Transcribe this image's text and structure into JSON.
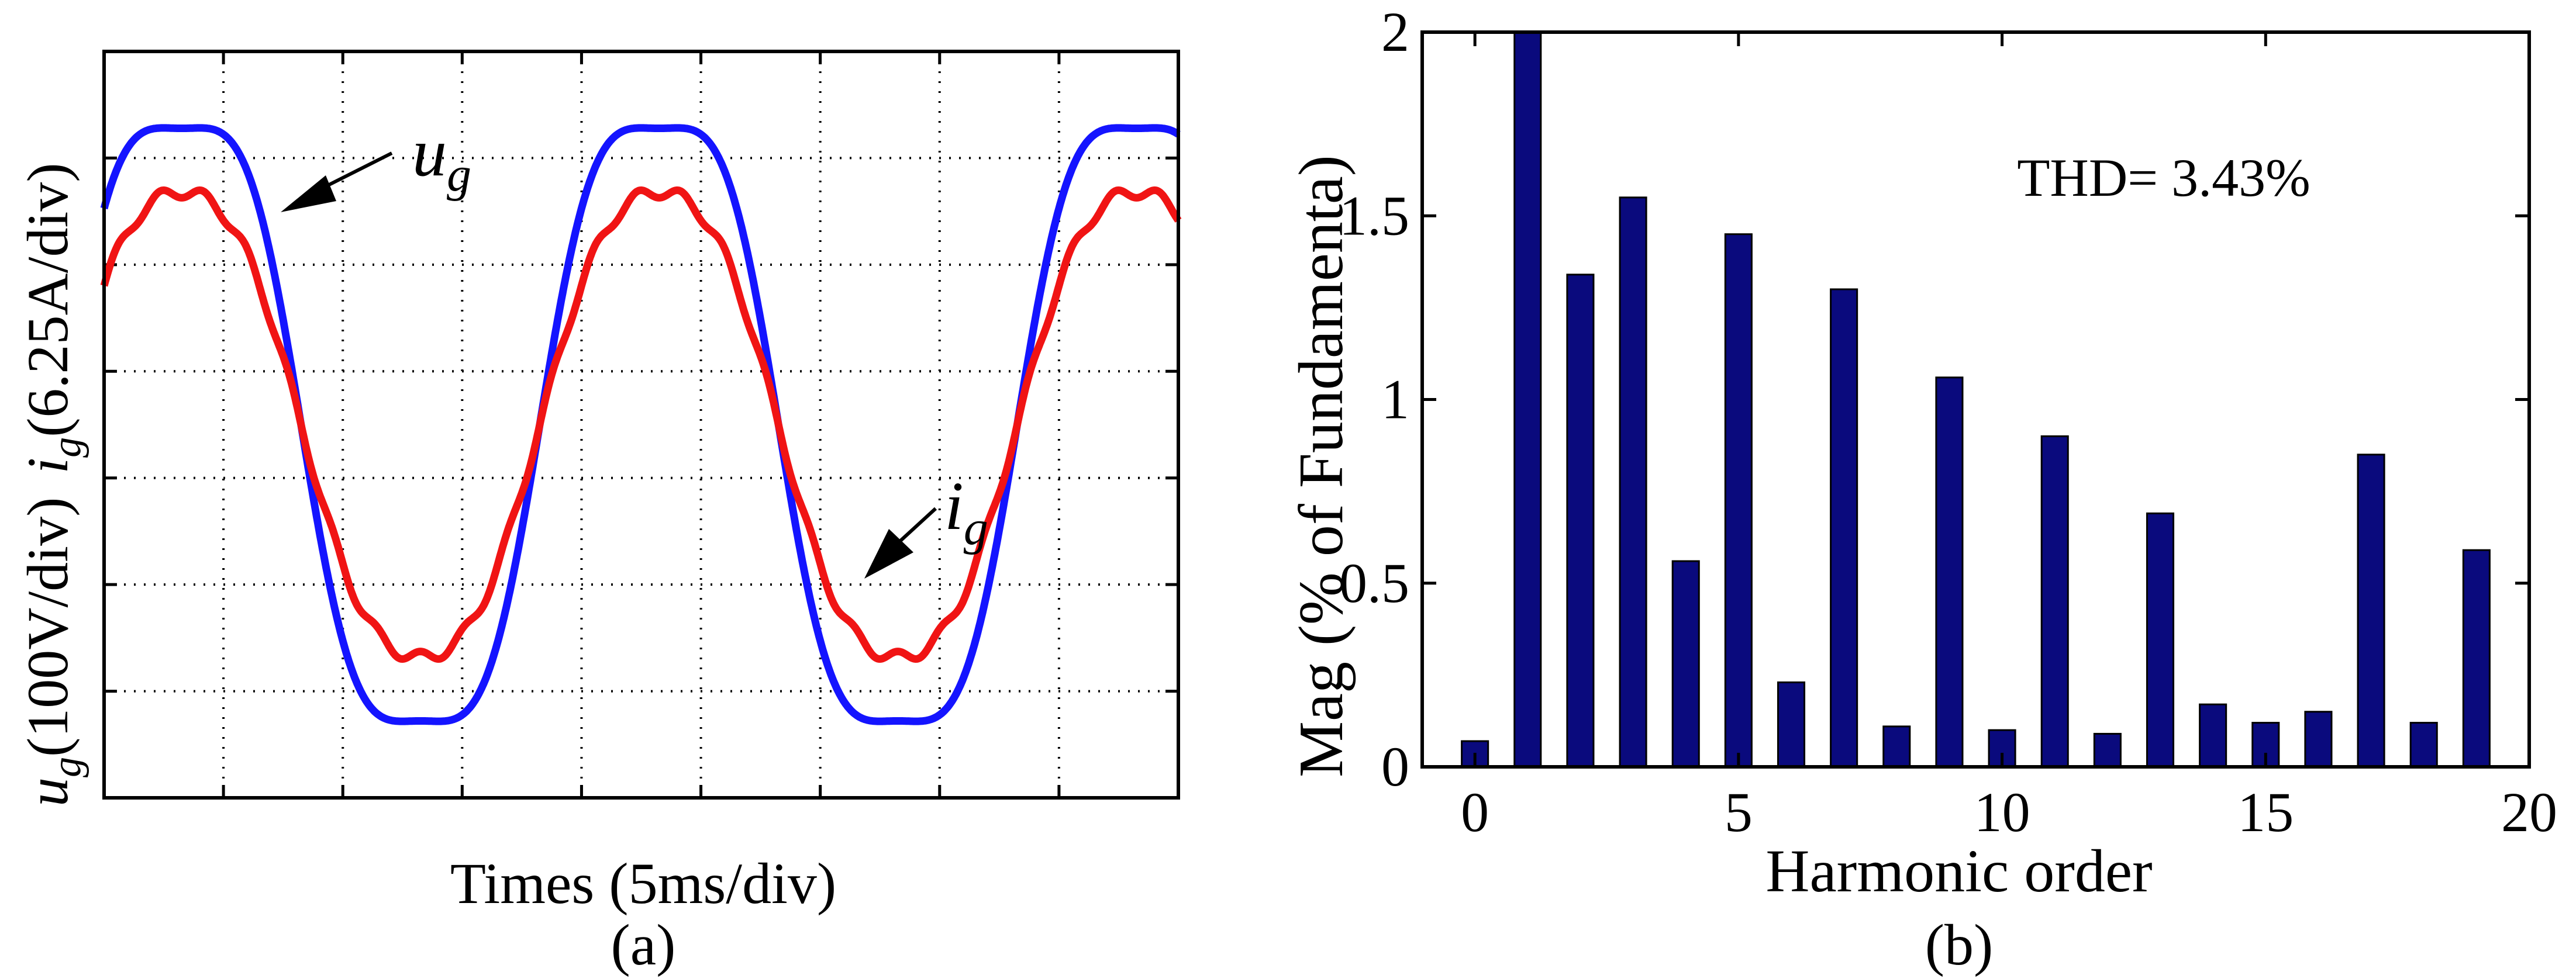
{
  "chart_data": [
    {
      "type": "line",
      "panel_label": "(a)",
      "xlabel": "Times (5ms/div)",
      "ylabel_parts": {
        "current_symbol": "i",
        "current_sub": "g",
        "current_scale": "(6.25A/div)",
        "voltage_symbol": "u",
        "voltage_sub": "g",
        "voltage_scale": "(100V/div)"
      },
      "grid": true,
      "x_divisions": 9,
      "y_divisions": 7,
      "xlim_div": [
        0,
        9
      ],
      "ylim_div": [
        -3.5,
        3.5
      ],
      "period_div": 4,
      "series": [
        {
          "name": "u",
          "sub": "g",
          "color": "#1414ff",
          "description": "grid voltage",
          "amplitude_div": 3.0,
          "phase_offset_div": -0.35
        },
        {
          "name": "i",
          "sub": "g",
          "color": "#f01414",
          "description": "grid current",
          "amplitude_div": 2.3,
          "phase_offset_div": -0.35
        }
      ]
    },
    {
      "type": "bar",
      "panel_label": "(b)",
      "xlabel": "Harmonic order",
      "ylabel": "Mag (% of Fundamenta)",
      "annotation": "THD= 3.43%",
      "bar_color": "#0a0a7d",
      "xlim": [
        -1,
        20
      ],
      "ylim": [
        0,
        2
      ],
      "xticks": [
        0,
        5,
        10,
        15,
        20
      ],
      "yticks": [
        0,
        0.5,
        1,
        1.5,
        2
      ],
      "yticklabels": [
        "0",
        "0.5",
        "1",
        "1.5",
        "2"
      ],
      "categories": [
        0,
        1,
        2,
        3,
        4,
        5,
        6,
        7,
        8,
        9,
        10,
        11,
        12,
        13,
        14,
        15,
        16,
        17,
        18,
        19
      ],
      "values": [
        0.07,
        2.0,
        1.34,
        1.55,
        0.56,
        1.45,
        0.23,
        1.3,
        0.11,
        1.06,
        0.1,
        0.9,
        0.09,
        0.69,
        0.17,
        0.12,
        0.15,
        0.85,
        0.12,
        0.59
      ]
    }
  ]
}
